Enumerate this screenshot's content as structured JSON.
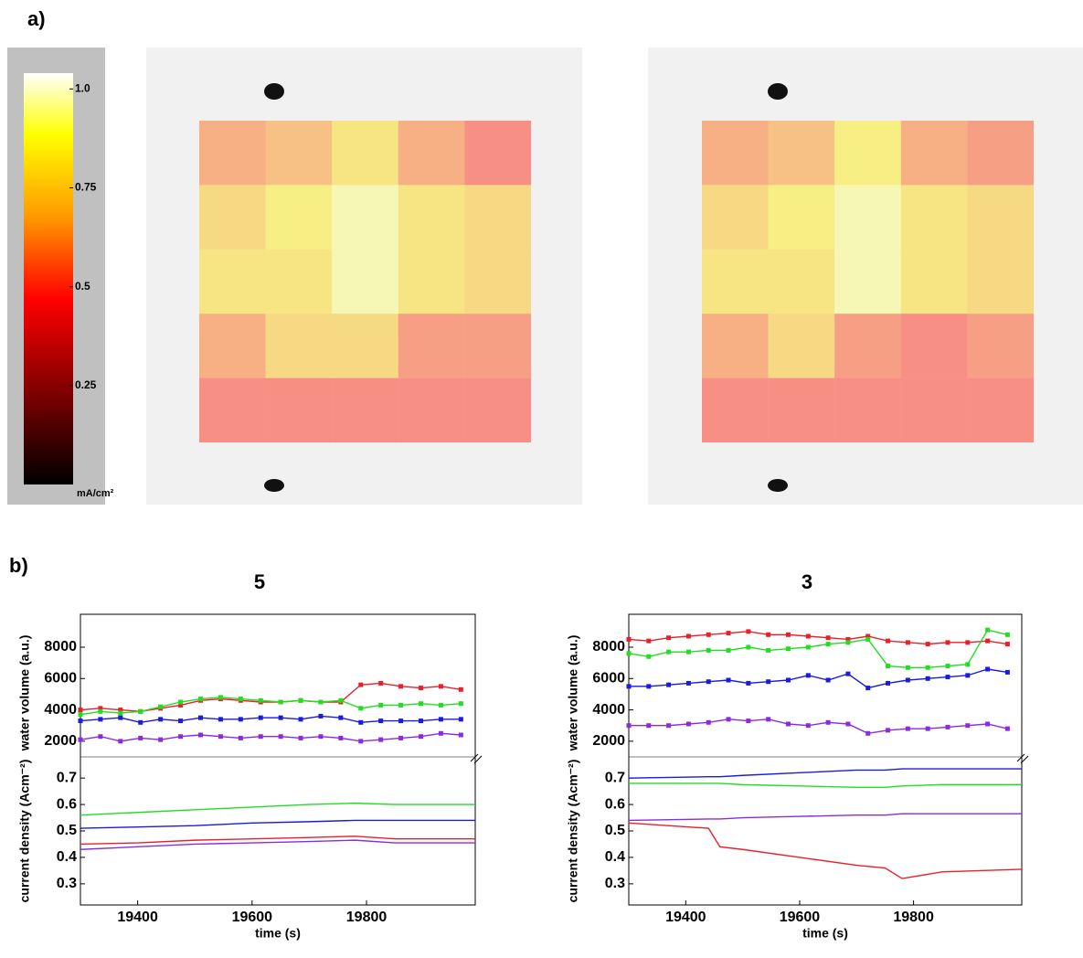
{
  "labels": {
    "a": "a)",
    "b": "b)"
  },
  "chart_data": [
    {
      "type": "heatmap",
      "values": [
        [
          0.6,
          0.65,
          0.8,
          0.6,
          0.5
        ],
        [
          0.75,
          0.85,
          0.95,
          0.8,
          0.75
        ],
        [
          0.8,
          0.8,
          0.95,
          0.8,
          0.75
        ],
        [
          0.6,
          0.75,
          0.75,
          0.55,
          0.55
        ],
        [
          0.5,
          0.5,
          0.5,
          0.5,
          0.5
        ]
      ],
      "clim": [
        0,
        1.04
      ],
      "cticks": [
        {
          "value": 1,
          "label": "1.0"
        },
        0.75,
        0.5,
        0.25
      ],
      "clabel": "mA/cm²"
    },
    {
      "type": "heatmap",
      "values": [
        [
          0.6,
          0.65,
          0.85,
          0.6,
          0.55
        ],
        [
          0.75,
          0.85,
          0.95,
          0.8,
          0.75
        ],
        [
          0.8,
          0.8,
          0.95,
          0.8,
          0.75
        ],
        [
          0.6,
          0.75,
          0.55,
          0.5,
          0.55
        ],
        [
          0.5,
          0.5,
          0.5,
          0.5,
          0.5
        ]
      ],
      "clim": [
        0,
        1.04
      ]
    },
    {
      "type": "line",
      "title": "5",
      "xlabel": "time (s)",
      "ylabel": "water volume (a.u.)",
      "y2label": "current density (Acm⁻²)",
      "xlim": [
        19300,
        19990
      ],
      "xticks": [
        19400,
        19600,
        19800
      ],
      "ylim": [
        1000,
        10100
      ],
      "yticks": [
        2000,
        4000,
        6000,
        8000
      ],
      "y2lim": [
        0.22,
        0.78
      ],
      "y2ticks": [
        0.3,
        0.4,
        0.5,
        0.6,
        0.7
      ],
      "x": [
        19300,
        19335,
        19370,
        19405,
        19440,
        19475,
        19510,
        19545,
        19580,
        19615,
        19650,
        19685,
        19720,
        19755,
        19790,
        19825,
        19860,
        19895,
        19930,
        19965
      ],
      "series": [
        {
          "color": "#e8202a",
          "values": [
            4000,
            4100,
            4000,
            3900,
            4100,
            4300,
            4600,
            4700,
            4600,
            4500,
            4500,
            4600,
            4500,
            4500,
            5600,
            5700,
            5500,
            5400,
            5500,
            5300
          ]
        },
        {
          "color": "#22dd22",
          "values": [
            3700,
            3900,
            3800,
            3900,
            4200,
            4500,
            4700,
            4800,
            4700,
            4600,
            4500,
            4600,
            4500,
            4600,
            4100,
            4300,
            4300,
            4400,
            4300,
            4400
          ]
        },
        {
          "color": "#1a1ae0",
          "values": [
            3300,
            3400,
            3500,
            3200,
            3400,
            3300,
            3500,
            3400,
            3400,
            3500,
            3500,
            3400,
            3600,
            3500,
            3200,
            3300,
            3300,
            3300,
            3400,
            3400
          ]
        },
        {
          "color": "#8a2be2",
          "values": [
            2100,
            2300,
            2000,
            2200,
            2100,
            2300,
            2400,
            2300,
            2200,
            2300,
            2300,
            2200,
            2300,
            2200,
            2000,
            2100,
            2200,
            2300,
            2500,
            2400
          ]
        },
        {
          "axis": "y2",
          "color": "#22dd22",
          "x": [
            19300,
            19400,
            19500,
            19600,
            19700,
            19780,
            19850,
            19990
          ],
          "values": [
            0.56,
            0.57,
            0.58,
            0.59,
            0.6,
            0.605,
            0.6,
            0.6
          ]
        },
        {
          "axis": "y2",
          "color": "#1a1ae0",
          "x": [
            19300,
            19400,
            19500,
            19600,
            19700,
            19780,
            19850,
            19990
          ],
          "values": [
            0.51,
            0.515,
            0.52,
            0.53,
            0.535,
            0.54,
            0.54,
            0.54
          ]
        },
        {
          "axis": "y2",
          "color": "#e8202a",
          "x": [
            19300,
            19400,
            19500,
            19600,
            19700,
            19780,
            19850,
            19990
          ],
          "values": [
            0.45,
            0.455,
            0.465,
            0.47,
            0.475,
            0.48,
            0.47,
            0.47
          ]
        },
        {
          "axis": "y2",
          "color": "#8a2be2",
          "x": [
            19300,
            19400,
            19500,
            19600,
            19700,
            19780,
            19850,
            19990
          ],
          "values": [
            0.43,
            0.44,
            0.45,
            0.455,
            0.46,
            0.465,
            0.455,
            0.455
          ]
        }
      ]
    },
    {
      "type": "line",
      "title": "3",
      "xlabel": "time (s)",
      "ylabel": "water volume (a.u.)",
      "y2label": "current density (Acm⁻²)",
      "xlim": [
        19300,
        19990
      ],
      "xticks": [
        19400,
        19600,
        19800
      ],
      "ylim": [
        1000,
        10100
      ],
      "yticks": [
        2000,
        4000,
        6000,
        8000
      ],
      "y2lim": [
        0.22,
        0.78
      ],
      "y2ticks": [
        0.3,
        0.4,
        0.5,
        0.6,
        0.7
      ],
      "x": [
        19300,
        19335,
        19370,
        19405,
        19440,
        19475,
        19510,
        19545,
        19580,
        19615,
        19650,
        19685,
        19720,
        19755,
        19790,
        19825,
        19860,
        19895,
        19930,
        19965
      ],
      "series": [
        {
          "color": "#e8202a",
          "values": [
            8500,
            8400,
            8600,
            8700,
            8800,
            8900,
            9000,
            8800,
            8800,
            8700,
            8600,
            8500,
            8700,
            8400,
            8300,
            8200,
            8300,
            8300,
            8400,
            8200
          ]
        },
        {
          "color": "#22dd22",
          "values": [
            7600,
            7400,
            7700,
            7700,
            7800,
            7800,
            8000,
            7800,
            7900,
            8000,
            8200,
            8300,
            8500,
            6800,
            6700,
            6700,
            6800,
            6900,
            9100,
            8800
          ]
        },
        {
          "color": "#1a1ae0",
          "values": [
            5500,
            5500,
            5600,
            5700,
            5800,
            5900,
            5700,
            5800,
            5900,
            6200,
            5900,
            6300,
            5400,
            5700,
            5900,
            6000,
            6100,
            6200,
            6600,
            6400
          ]
        },
        {
          "color": "#8a2be2",
          "values": [
            3000,
            3000,
            3000,
            3100,
            3200,
            3400,
            3300,
            3400,
            3100,
            3000,
            3200,
            3100,
            2500,
            2700,
            2800,
            2800,
            2900,
            3000,
            3100,
            2800
          ]
        },
        {
          "axis": "y2",
          "color": "#1a1ae0",
          "x": [
            19300,
            19440,
            19460,
            19500,
            19600,
            19700,
            19750,
            19780,
            19850,
            19990
          ],
          "values": [
            0.7,
            0.705,
            0.705,
            0.71,
            0.72,
            0.73,
            0.73,
            0.735,
            0.735,
            0.735
          ]
        },
        {
          "axis": "y2",
          "color": "#22dd22",
          "x": [
            19300,
            19440,
            19460,
            19500,
            19600,
            19700,
            19750,
            19780,
            19850,
            19990
          ],
          "values": [
            0.68,
            0.68,
            0.68,
            0.675,
            0.67,
            0.665,
            0.665,
            0.67,
            0.675,
            0.675
          ]
        },
        {
          "axis": "y2",
          "color": "#8a2be2",
          "x": [
            19300,
            19440,
            19460,
            19500,
            19600,
            19700,
            19750,
            19780,
            19850,
            19990
          ],
          "values": [
            0.54,
            0.545,
            0.545,
            0.55,
            0.555,
            0.56,
            0.56,
            0.565,
            0.565,
            0.565
          ]
        },
        {
          "axis": "y2",
          "color": "#e8202a",
          "x": [
            19300,
            19440,
            19460,
            19500,
            19600,
            19700,
            19750,
            19780,
            19850,
            19990
          ],
          "values": [
            0.53,
            0.51,
            0.44,
            0.43,
            0.4,
            0.37,
            0.36,
            0.32,
            0.345,
            0.355
          ]
        }
      ]
    }
  ]
}
